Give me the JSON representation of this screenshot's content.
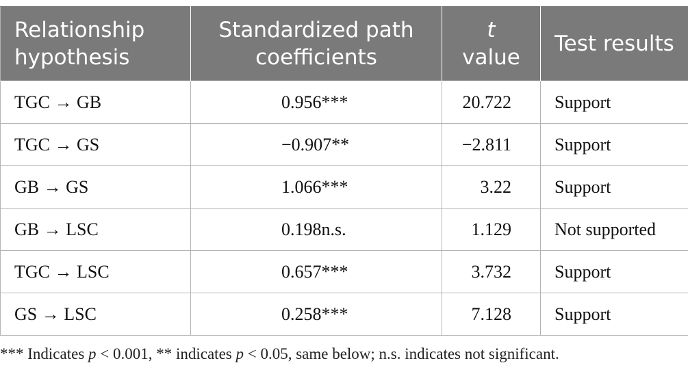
{
  "table": {
    "headers": {
      "col1": "Relationship hypothesis",
      "col2": "Standardized path coefficients",
      "col3_var": "t",
      "col3_rest": "value",
      "col4": "Test results"
    },
    "rows": [
      {
        "hypothesis": "TGC → GB",
        "coefficient": "0.956***",
        "t_value": "20.722",
        "result": "Support"
      },
      {
        "hypothesis": "TGC → GS",
        "coefficient": "−0.907**",
        "t_value": "−2.811",
        "result": "Support"
      },
      {
        "hypothesis": "GB → GS",
        "coefficient": "1.066***",
        "t_value": "3.22",
        "result": "Support"
      },
      {
        "hypothesis": "GB → LSC",
        "coefficient": "0.198n.s.",
        "t_value": "1.129",
        "result": "Not supported"
      },
      {
        "hypothesis": "TGC → LSC",
        "coefficient": "0.657***",
        "t_value": "3.732",
        "result": "Support"
      },
      {
        "hypothesis": "GS → LSC",
        "coefficient": "0.258***",
        "t_value": "7.128",
        "result": "Support"
      }
    ]
  },
  "footnote": {
    "part1": "*** Indicates ",
    "p1": "p",
    "part2": " < 0.001, ** indicates ",
    "p2": "p",
    "part3": " < 0.05, same below; n.s. indicates not significant."
  }
}
